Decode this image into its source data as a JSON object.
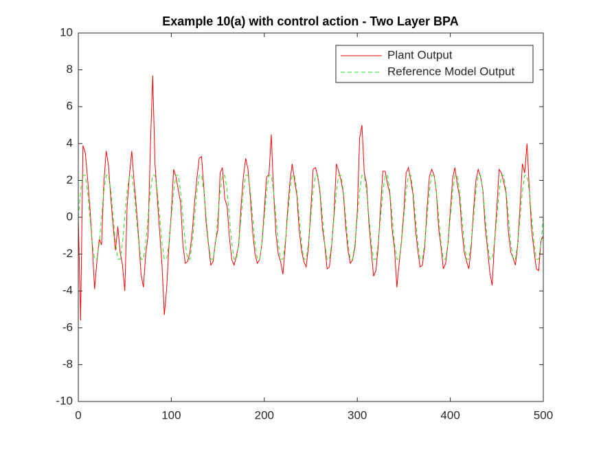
{
  "chart_data": {
    "type": "line",
    "title": "Example 10(a) with control action - Two Layer BPA",
    "x": [
      0,
      2.5,
      5,
      7.5,
      10,
      12.5,
      15,
      17.5,
      20,
      22.5,
      25,
      27.5,
      30,
      32.5,
      35,
      37.5,
      40,
      42.5,
      45,
      47.5,
      50,
      52.5,
      55,
      57.5,
      60,
      62.5,
      65,
      67.5,
      70,
      72.5,
      75,
      77.5,
      80,
      82.5,
      85,
      87.5,
      90,
      92.5,
      95,
      97.5,
      100,
      102.5,
      105,
      107.5,
      110,
      112.5,
      115,
      117.5,
      120,
      122.5,
      125,
      127.5,
      130,
      132.5,
      135,
      137.5,
      140,
      142.5,
      145,
      147.5,
      150,
      152.5,
      155,
      157.5,
      160,
      162.5,
      165,
      167.5,
      170,
      172.5,
      175,
      177.5,
      180,
      182.5,
      185,
      187.5,
      190,
      192.5,
      195,
      197.5,
      200,
      202.5,
      205,
      207.5,
      210,
      212.5,
      215,
      217.5,
      220,
      222.5,
      225,
      227.5,
      230,
      232.5,
      235,
      237.5,
      240,
      242.5,
      245,
      247.5,
      250,
      252.5,
      255,
      257.5,
      260,
      262.5,
      265,
      267.5,
      270,
      272.5,
      275,
      277.5,
      280,
      282.5,
      285,
      287.5,
      290,
      292.5,
      295,
      297.5,
      300,
      302.5,
      305,
      307.5,
      310,
      312.5,
      315,
      317.5,
      320,
      322.5,
      325,
      327.5,
      330,
      332.5,
      335,
      337.5,
      340,
      342.5,
      345,
      347.5,
      350,
      352.5,
      355,
      357.5,
      360,
      362.5,
      365,
      367.5,
      370,
      372.5,
      375,
      377.5,
      380,
      382.5,
      385,
      387.5,
      390,
      392.5,
      395,
      397.5,
      400,
      402.5,
      405,
      407.5,
      410,
      412.5,
      415,
      417.5,
      420,
      422.5,
      425,
      427.5,
      430,
      432.5,
      435,
      437.5,
      440,
      442.5,
      445,
      447.5,
      450,
      452.5,
      455,
      457.5,
      460,
      462.5,
      465,
      467.5,
      470,
      472.5,
      475,
      477.5,
      480,
      482.5,
      485,
      487.5,
      490,
      492.5,
      495,
      497.5,
      500
    ],
    "series": [
      {
        "name": "Plant Output",
        "color": "#ff0000",
        "dash": "solid",
        "values": [
          0,
          -5.6,
          3.9,
          3.5,
          2.1,
          0.5,
          -1.5,
          -3.9,
          -2.4,
          -1.2,
          -1.5,
          1.9,
          3.6,
          2.8,
          1.0,
          -0.5,
          -1.8,
          -0.5,
          -1.9,
          -2.6,
          -4.0,
          0.6,
          2.3,
          3.6,
          1.9,
          0.5,
          -1.2,
          -3.1,
          -3.8,
          -2.0,
          -1.0,
          3.8,
          7.7,
          2.9,
          1.0,
          -0.8,
          -2.6,
          -5.3,
          -3.9,
          -1.5,
          0.2,
          2.6,
          2.2,
          1.5,
          0.8,
          -1.5,
          -2.5,
          -2.4,
          -1.9,
          -0.8,
          0.8,
          2.1,
          3.2,
          3.3,
          1.6,
          -0.3,
          -1.5,
          -2.6,
          -2.4,
          -1.3,
          -0.7,
          2.4,
          2.7,
          1.0,
          0.6,
          -1.1,
          -2.3,
          -2.6,
          -2.1,
          -1.5,
          0.6,
          2.2,
          3.2,
          2.6,
          1.1,
          -0.8,
          -2.0,
          -2.5,
          -2.3,
          -1.4,
          0.4,
          2.2,
          2.3,
          4.5,
          1.4,
          -0.9,
          -2.0,
          -2.4,
          -3.1,
          -1.6,
          0.3,
          1.9,
          2.9,
          2.0,
          1.2,
          -0.7,
          -1.8,
          -2.4,
          -2.7,
          -1.6,
          0.4,
          2.6,
          2.7,
          2.2,
          1.3,
          -0.6,
          -1.5,
          -2.8,
          -2.7,
          -1.5,
          0.2,
          2.9,
          2.5,
          2.0,
          1.3,
          -0.5,
          -1.8,
          -2.5,
          -2.3,
          -1.6,
          0.3,
          4.3,
          5.0,
          2.4,
          1.8,
          -0.3,
          -1.8,
          -3.2,
          -2.9,
          -1.6,
          0.5,
          2.5,
          2.5,
          1.8,
          1.3,
          -0.7,
          -1.7,
          -3.8,
          -2.5,
          -1.3,
          0.3,
          2.4,
          2.7,
          2.0,
          1.2,
          -0.6,
          -1.8,
          -2.7,
          -2.6,
          -1.6,
          0.5,
          2.2,
          2.6,
          2.3,
          1.4,
          -0.6,
          -1.6,
          -2.8,
          -2.5,
          -1.4,
          0.3,
          2.1,
          2.7,
          1.8,
          1.1,
          -0.7,
          -1.9,
          -2.4,
          -2.8,
          -1.6,
          0.4,
          2.0,
          2.6,
          2.2,
          1.5,
          -0.5,
          -1.7,
          -3.0,
          -3.7,
          -1.4,
          0.5,
          2.6,
          2.4,
          1.9,
          1.3,
          -0.8,
          -1.9,
          -2.2,
          -2.6,
          -1.5,
          0.6,
          2.9,
          2.4,
          4.0,
          1.5,
          -0.7,
          -1.8,
          -2.8,
          -2.9,
          -1.3,
          -1.0
        ]
      },
      {
        "name": "Reference Model Output",
        "color": "#22dd22",
        "dash": "dashed",
        "values": [
          0,
          1.41,
          2.28,
          2.28,
          1.41,
          0,
          -1.41,
          -2.28,
          -2.28,
          -1.41,
          0,
          1.41,
          2.28,
          2.28,
          1.41,
          0,
          -1.41,
          -2.28,
          -2.28,
          -1.41,
          0,
          1.41,
          2.28,
          2.28,
          1.41,
          0,
          -1.41,
          -2.28,
          -2.28,
          -1.41,
          0,
          1.41,
          2.28,
          2.28,
          1.41,
          0,
          -1.41,
          -2.28,
          -2.28,
          -1.41,
          0,
          1.41,
          2.28,
          2.28,
          1.41,
          0,
          -1.41,
          -2.28,
          -2.28,
          -1.41,
          0,
          1.41,
          2.28,
          2.28,
          1.41,
          0,
          -1.41,
          -2.28,
          -2.28,
          -1.41,
          0,
          1.41,
          2.28,
          2.28,
          1.41,
          0,
          -1.41,
          -2.28,
          -2.28,
          -1.41,
          0,
          1.41,
          2.28,
          2.28,
          1.41,
          0,
          -1.41,
          -2.28,
          -2.28,
          -1.41,
          0,
          1.41,
          2.28,
          2.28,
          1.41,
          0,
          -1.41,
          -2.28,
          -2.28,
          -1.41,
          0,
          1.41,
          2.28,
          2.28,
          1.41,
          0,
          -1.41,
          -2.28,
          -2.28,
          -1.41,
          0,
          1.41,
          2.28,
          2.28,
          1.41,
          0,
          -1.41,
          -2.28,
          -2.28,
          -1.41,
          0,
          1.41,
          2.28,
          2.28,
          1.41,
          0,
          -1.41,
          -2.28,
          -2.28,
          -1.41,
          0,
          1.41,
          2.28,
          2.28,
          1.41,
          0,
          -1.41,
          -2.28,
          -2.28,
          -1.41,
          0,
          1.41,
          2.28,
          2.28,
          1.41,
          0,
          -1.41,
          -2.28,
          -2.28,
          -1.41,
          0,
          1.41,
          2.28,
          2.28,
          1.41,
          0,
          -1.41,
          -2.28,
          -2.28,
          -1.41,
          0,
          1.41,
          2.28,
          2.28,
          1.41,
          0,
          -1.41,
          -2.28,
          -2.28,
          -1.41,
          0,
          1.41,
          2.28,
          2.28,
          1.41,
          0,
          -1.41,
          -2.28,
          -2.28,
          -1.41,
          0,
          1.41,
          2.28,
          2.28,
          1.41,
          0,
          -1.41,
          -2.28,
          -2.28,
          -1.41,
          0,
          1.41,
          2.28,
          2.28,
          1.41,
          0,
          -1.41,
          -2.28,
          -2.28,
          -1.41,
          0,
          1.41,
          2.28,
          2.28,
          1.41,
          0,
          -1.41,
          -2.28,
          -2.28,
          -1.41,
          0
        ]
      }
    ],
    "xlim": [
      0,
      500
    ],
    "xticks": [
      0,
      100,
      200,
      300,
      400,
      500
    ],
    "ylim": [
      -10,
      10
    ],
    "yticks": [
      -10,
      -8,
      -6,
      -4,
      -2,
      0,
      2,
      4,
      6,
      8,
      10
    ],
    "grid": false,
    "legend": "top-right"
  }
}
